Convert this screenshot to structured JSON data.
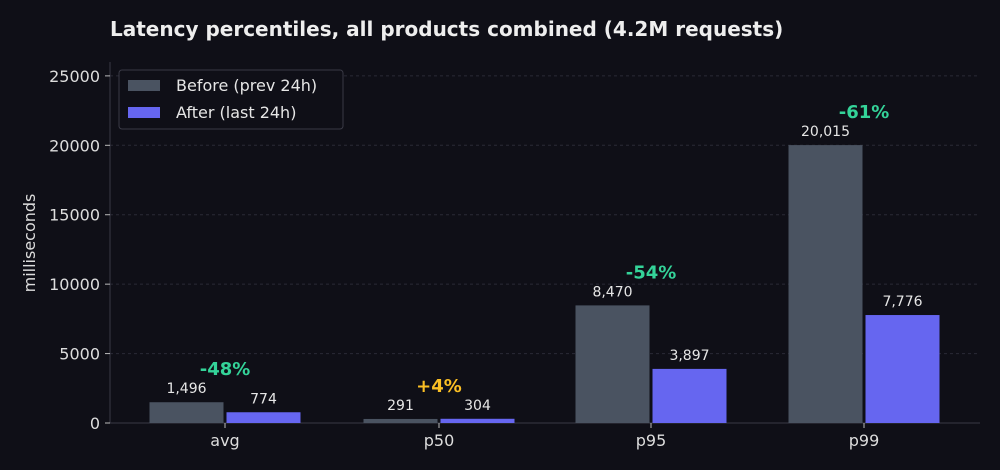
{
  "chart_data": {
    "type": "bar",
    "title": "Latency percentiles, all products combined (4.2M requests)",
    "xlabel": "",
    "ylabel": "milliseconds",
    "categories": [
      "avg",
      "p50",
      "p95",
      "p99"
    ],
    "ylim": [
      0,
      26000
    ],
    "yticks": [
      0,
      5000,
      10000,
      15000,
      20000,
      25000
    ],
    "grid": true,
    "legend_position": "top-left",
    "series": [
      {
        "name": "Before (prev 24h)",
        "color": "#4a5361",
        "values": [
          1496,
          291,
          8470,
          20015
        ],
        "labels": [
          "1,496",
          "291",
          "8,470",
          "20,015"
        ]
      },
      {
        "name": "After (last 24h)",
        "color": "#6666f0",
        "values": [
          774,
          304,
          3897,
          7776
        ],
        "labels": [
          "774",
          "304",
          "3,897",
          "7,776"
        ]
      }
    ],
    "annotations": [
      {
        "category": "avg",
        "text": "-48%",
        "color": "#34d399"
      },
      {
        "category": "p50",
        "text": "+4%",
        "color": "#fbbf24"
      },
      {
        "category": "p95",
        "text": "-54%",
        "color": "#34d399"
      },
      {
        "category": "p99",
        "text": "-61%",
        "color": "#34d399"
      }
    ]
  }
}
